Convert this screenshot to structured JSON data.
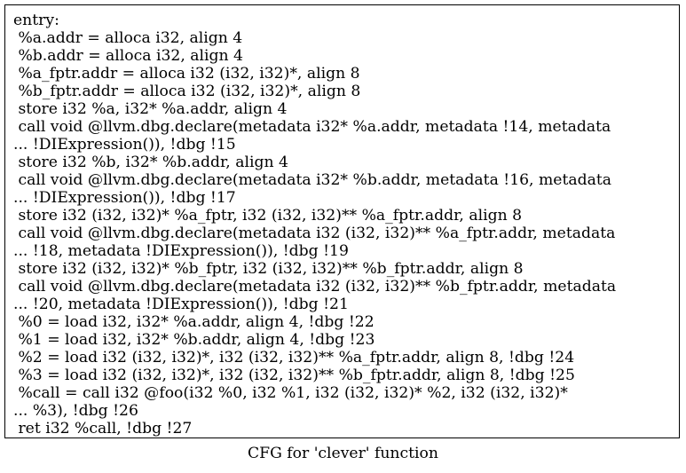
{
  "graph": {
    "caption": "CFG for 'clever' function"
  },
  "node": {
    "lines": [
      "entry:",
      " %a.addr = alloca i32, align 4",
      " %b.addr = alloca i32, align 4",
      " %a_fptr.addr = alloca i32 (i32, i32)*, align 8",
      " %b_fptr.addr = alloca i32 (i32, i32)*, align 8",
      " store i32 %a, i32* %a.addr, align 4",
      " call void @llvm.dbg.declare(metadata i32* %a.addr, metadata !14, metadata",
      "... !DIExpression()), !dbg !15",
      " store i32 %b, i32* %b.addr, align 4",
      " call void @llvm.dbg.declare(metadata i32* %b.addr, metadata !16, metadata",
      "... !DIExpression()), !dbg !17",
      " store i32 (i32, i32)* %a_fptr, i32 (i32, i32)** %a_fptr.addr, align 8",
      " call void @llvm.dbg.declare(metadata i32 (i32, i32)** %a_fptr.addr, metadata",
      "... !18, metadata !DIExpression()), !dbg !19",
      " store i32 (i32, i32)* %b_fptr, i32 (i32, i32)** %b_fptr.addr, align 8",
      " call void @llvm.dbg.declare(metadata i32 (i32, i32)** %b_fptr.addr, metadata",
      "... !20, metadata !DIExpression()), !dbg !21",
      " %0 = load i32, i32* %a.addr, align 4, !dbg !22",
      " %1 = load i32, i32* %b.addr, align 4, !dbg !23",
      " %2 = load i32 (i32, i32)*, i32 (i32, i32)** %a_fptr.addr, align 8, !dbg !24",
      " %3 = load i32 (i32, i32)*, i32 (i32, i32)** %b_fptr.addr, align 8, !dbg !25",
      " %call = call i32 @foo(i32 %0, i32 %1, i32 (i32, i32)* %2, i32 (i32, i32)*",
      "... %3), !dbg !26",
      " ret i32 %call, !dbg !27"
    ]
  }
}
